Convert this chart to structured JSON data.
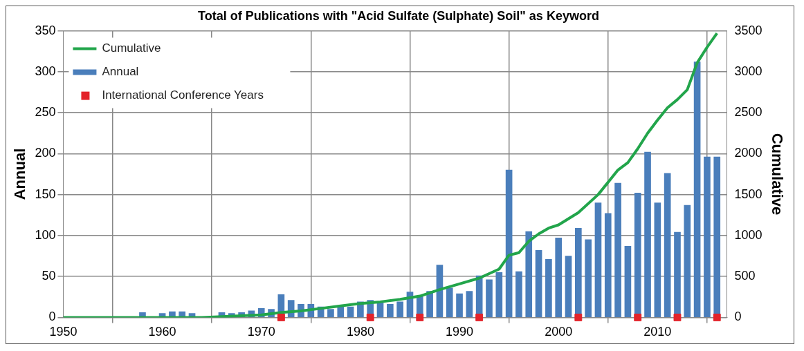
{
  "chart_data": {
    "type": "bar",
    "title": "Total of Publications with \"Acid Sulfate (Sulphate) Soil\" as Keyword",
    "ylabel": "Annual",
    "y2label": "Cumulative",
    "xlim": [
      1950,
      2017
    ],
    "xticks": [
      1950,
      1960,
      1970,
      1980,
      1990,
      2000,
      2010
    ],
    "ylim": [
      0,
      350
    ],
    "yticks": [
      0,
      50,
      100,
      150,
      200,
      250,
      300,
      350
    ],
    "y2lim": [
      0,
      3500
    ],
    "y2ticks": [
      0,
      500,
      1000,
      1500,
      2000,
      2500,
      3000,
      3500
    ],
    "grid": true,
    "legend": "top left",
    "series": [
      {
        "name": "Cumulative",
        "type": "line",
        "axis": "y2",
        "color": "#22a54b",
        "x": [
          1950,
          1964,
          1966,
          1968,
          1970,
          1972,
          1974,
          1976,
          1978,
          1980,
          1982,
          1984,
          1986,
          1988,
          1990,
          1992,
          1994,
          1995,
          1996,
          1997,
          1998,
          1999,
          2000,
          2002,
          2004,
          2006,
          2007,
          2008,
          2009,
          2010,
          2011,
          2012,
          2013,
          2014,
          2015,
          2016
        ],
        "values": [
          0,
          0,
          10,
          20,
          30,
          60,
          80,
          110,
          140,
          170,
          190,
          220,
          260,
          340,
          410,
          480,
          590,
          760,
          790,
          930,
          1020,
          1090,
          1130,
          1280,
          1500,
          1800,
          1890,
          2060,
          2250,
          2410,
          2560,
          2660,
          2780,
          3110,
          3300,
          3470
        ]
      },
      {
        "name": "Annual",
        "color": "#4a7ebb",
        "x": [
          1958,
          1960,
          1961,
          1962,
          1963,
          1966,
          1967,
          1968,
          1969,
          1970,
          1971,
          1972,
          1973,
          1974,
          1975,
          1976,
          1977,
          1978,
          1979,
          1980,
          1981,
          1982,
          1983,
          1984,
          1985,
          1986,
          1987,
          1988,
          1989,
          1990,
          1991,
          1992,
          1993,
          1994,
          1995,
          1996,
          1997,
          1998,
          1999,
          2000,
          2001,
          2002,
          2003,
          2004,
          2005,
          2006,
          2007,
          2008,
          2009,
          2010,
          2011,
          2012,
          2013,
          2014,
          2015,
          2016
        ],
        "values": [
          6,
          5,
          7,
          7,
          5,
          6,
          5,
          6,
          8,
          11,
          10,
          28,
          21,
          16,
          16,
          13,
          10,
          13,
          13,
          19,
          21,
          18,
          16,
          19,
          31,
          26,
          32,
          64,
          36,
          29,
          32,
          51,
          46,
          55,
          180,
          56,
          105,
          82,
          71,
          97,
          75,
          109,
          95,
          140,
          127,
          164,
          87,
          152,
          202,
          140,
          176,
          104,
          137,
          312,
          196,
          196
        ]
      },
      {
        "name": "International Conference Years",
        "type": "scatter",
        "marker": "square",
        "color": "#e3232a",
        "x": [
          1972,
          1981,
          1986,
          1992,
          2002,
          2008,
          2012,
          2016
        ],
        "values": [
          0,
          0,
          0,
          0,
          0,
          0,
          0,
          0
        ]
      }
    ]
  }
}
